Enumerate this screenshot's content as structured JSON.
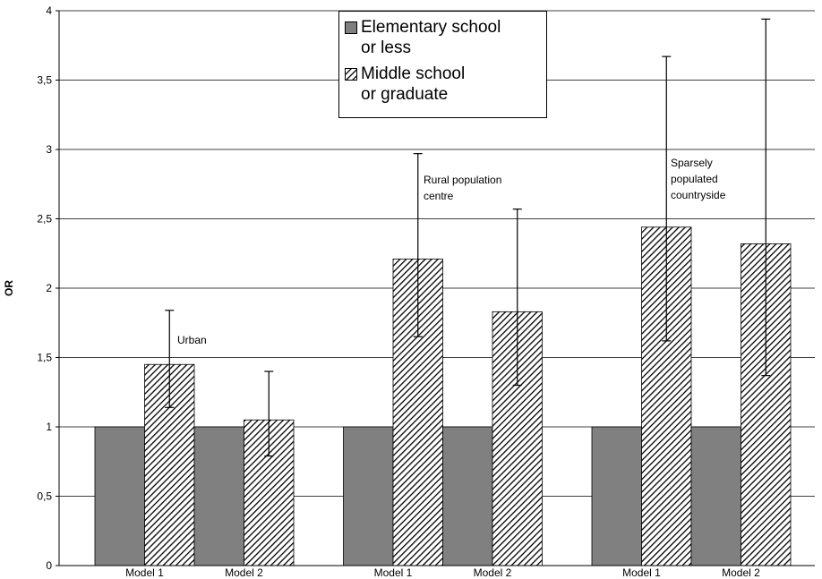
{
  "chart_data": {
    "type": "bar",
    "y_label": "OR",
    "categories": [
      "Model 1",
      "Model 2",
      "Model 1",
      "Model 2",
      "Model 1",
      "Model 2"
    ],
    "series": [
      {
        "name": "Elementary school\nor less",
        "color": "#808080",
        "values": [
          1,
          1,
          1,
          1,
          1,
          1
        ]
      },
      {
        "name": "Middle school\nor graduate",
        "color": "hatch",
        "values": [
          1.45,
          1.05,
          2.21,
          1.83,
          2.44,
          2.32
        ],
        "error_low": [
          1.14,
          0.79,
          1.65,
          1.3,
          1.62,
          1.37
        ],
        "error_high": [
          1.84,
          1.4,
          2.97,
          2.57,
          3.67,
          3.94
        ]
      }
    ],
    "annotations": [
      {
        "lines": [
          "Urban"
        ]
      },
      {
        "lines": [
          "Rural population",
          "centre"
        ]
      },
      {
        "lines": [
          "Sparsely",
          "populated",
          "countryside"
        ]
      }
    ],
    "ylim": [
      0,
      4
    ],
    "yticks": [
      0,
      {
        "value": 0.5,
        "label": "0,5"
      },
      1,
      {
        "value": 1.5,
        "label": "1,5"
      },
      2,
      {
        "value": 2.5,
        "label": "2,5"
      },
      3,
      {
        "value": 3.5,
        "label": "3,5"
      },
      4
    ],
    "grid": true
  }
}
